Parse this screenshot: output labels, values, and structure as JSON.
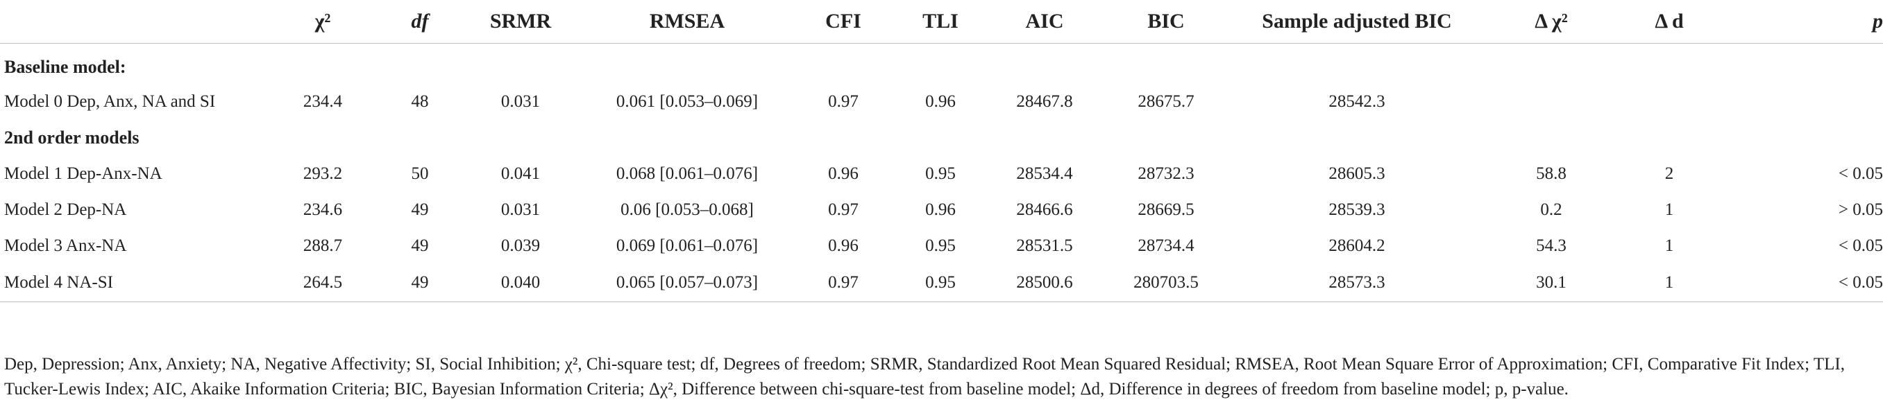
{
  "table": {
    "headers": [
      "",
      "χ²",
      "df",
      "SRMR",
      "RMSEA",
      "CFI",
      "TLI",
      "AIC",
      "BIC",
      "Sample adjusted BIC",
      "Δ χ²",
      "Δ d",
      "p"
    ],
    "sections": [
      {
        "title": "Baseline model:",
        "rows": [
          [
            "Model 0 Dep, Anx, NA and SI",
            "234.4",
            "48",
            "0.031",
            "0.061 [0.053–0.069]",
            "0.97",
            "0.96",
            "28467.8",
            "28675.7",
            "28542.3",
            "",
            "",
            ""
          ]
        ]
      },
      {
        "title": "2nd order models",
        "rows": [
          [
            "Model 1 Dep-Anx-NA",
            "293.2",
            "50",
            "0.041",
            "0.068 [0.061–0.076]",
            "0.96",
            "0.95",
            "28534.4",
            "28732.3",
            "28605.3",
            "58.8",
            "2",
            "< 0.05"
          ],
          [
            "Model 2 Dep-NA",
            "234.6",
            "49",
            "0.031",
            "0.06 [0.053–0.068]",
            "0.97",
            "0.96",
            "28466.6",
            "28669.5",
            "28539.3",
            "0.2",
            "1",
            "> 0.05"
          ],
          [
            "Model 3 Anx-NA",
            "288.7",
            "49",
            "0.039",
            "0.069 [0.061–0.076]",
            "0.96",
            "0.95",
            "28531.5",
            "28734.4",
            "28604.2",
            "54.3",
            "1",
            "< 0.05"
          ],
          [
            "Model 4 NA-SI",
            "264.5",
            "49",
            "0.040",
            "0.065 [0.057–0.073]",
            "0.97",
            "0.95",
            "28500.6",
            "280703.5",
            "28573.3",
            "30.1",
            "1",
            "< 0.05"
          ]
        ]
      }
    ]
  },
  "footnote": "Dep, Depression; Anx, Anxiety; NA, Negative Affectivity; SI, Social Inhibition; χ², Chi-square test; df, Degrees of freedom; SRMR, Standardized Root Mean Squared Residual; RMSEA, Root Mean Square Error of Approximation; CFI, Comparative Fit Index; TLI, Tucker-Lewis Index; AIC, Akaike Information Criteria; BIC, Bayesian Information Criteria; Δχ², Difference between chi-square-test from baseline model; Δd, Difference in degrees of freedom from baseline model; p, p-value."
}
